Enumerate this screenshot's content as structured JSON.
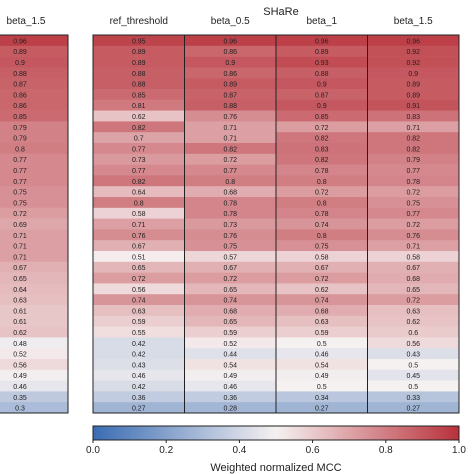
{
  "chart_data": {
    "type": "heatmap",
    "left_panel": {
      "column_label": "beta_1.5",
      "values": [
        0.96,
        0.89,
        0.9,
        0.88,
        0.87,
        0.86,
        0.86,
        0.85,
        0.79,
        0.79,
        0.8,
        0.77,
        0.77,
        0.77,
        0.75,
        0.75,
        0.72,
        0.69,
        0.71,
        0.71,
        0.71,
        0.67,
        0.65,
        0.64,
        0.63,
        0.61,
        0.61,
        0.62,
        0.48,
        0.52,
        0.56,
        0.49,
        0.46,
        0.35,
        0.3
      ]
    },
    "right_panel": {
      "title": "SHaRe",
      "columns": [
        "ref_threshold",
        "beta_0.5",
        "beta_1",
        "beta_1.5"
      ],
      "values": [
        [
          0.95,
          0.96,
          0.96,
          0.96
        ],
        [
          0.89,
          0.86,
          0.89,
          0.92
        ],
        [
          0.89,
          0.9,
          0.93,
          0.92
        ],
        [
          0.88,
          0.86,
          0.88,
          0.9
        ],
        [
          0.88,
          0.89,
          0.9,
          0.89
        ],
        [
          0.85,
          0.87,
          0.87,
          0.89
        ],
        [
          0.81,
          0.88,
          0.9,
          0.91
        ],
        [
          0.62,
          0.76,
          0.85,
          0.83
        ],
        [
          0.82,
          0.71,
          0.72,
          0.71
        ],
        [
          0.7,
          0.71,
          0.82,
          0.82
        ],
        [
          0.77,
          0.82,
          0.83,
          0.82
        ],
        [
          0.73,
          0.72,
          0.82,
          0.79
        ],
        [
          0.77,
          0.77,
          0.78,
          0.77
        ],
        [
          0.82,
          0.8,
          0.8,
          0.78
        ],
        [
          0.64,
          0.68,
          0.72,
          0.72
        ],
        [
          0.8,
          0.78,
          0.8,
          0.75
        ],
        [
          0.58,
          0.78,
          0.78,
          0.77
        ],
        [
          0.71,
          0.73,
          0.74,
          0.72
        ],
        [
          0.76,
          0.76,
          0.8,
          0.76
        ],
        [
          0.67,
          0.75,
          0.75,
          0.71
        ],
        [
          0.51,
          0.57,
          0.58,
          0.58
        ],
        [
          0.65,
          0.67,
          0.67,
          0.67
        ],
        [
          0.72,
          0.72,
          0.72,
          0.68
        ],
        [
          0.56,
          0.65,
          0.62,
          0.65
        ],
        [
          0.74,
          0.74,
          0.74,
          0.72
        ],
        [
          0.63,
          0.68,
          0.68,
          0.63
        ],
        [
          0.59,
          0.65,
          0.63,
          0.62
        ],
        [
          0.55,
          0.59,
          0.59,
          0.6
        ],
        [
          0.42,
          0.52,
          0.5,
          0.56
        ],
        [
          0.42,
          0.44,
          0.46,
          0.43
        ],
        [
          0.43,
          0.54,
          0.54,
          0.5
        ],
        [
          0.46,
          0.49,
          0.49,
          0.45
        ],
        [
          0.42,
          0.46,
          0.5,
          0.5
        ],
        [
          0.36,
          0.36,
          0.34,
          0.33
        ],
        [
          0.27,
          0.28,
          0.27,
          0.27
        ]
      ]
    },
    "colorbar": {
      "label": "Weighted normalized MCC",
      "range": [
        0.0,
        1.0
      ],
      "ticks": [
        "0.0",
        "0.2",
        "0.4",
        "0.6",
        "0.8",
        "1.0"
      ],
      "colormap": "vlag",
      "low_color": "#3a6cb3",
      "mid_color": "#f6f1f1",
      "high_color": "#b8313a"
    }
  }
}
